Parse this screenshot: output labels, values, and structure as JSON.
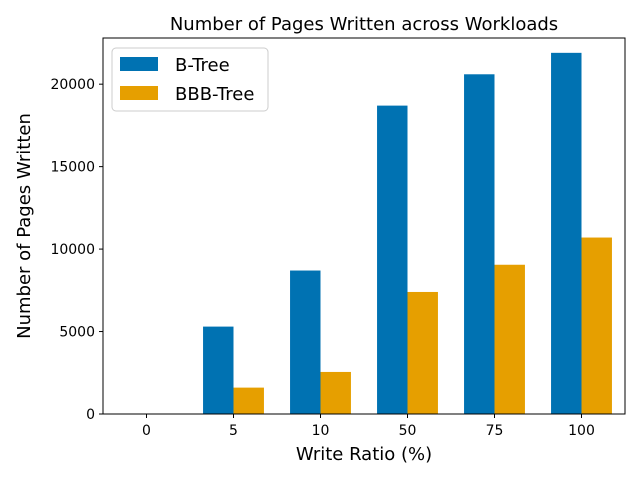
{
  "chart_data": {
    "type": "bar",
    "title": "Number of Pages Written across Workloads",
    "xlabel": "Write Ratio (%)",
    "ylabel": "Number of Pages Written",
    "categories": [
      "0",
      "5",
      "10",
      "50",
      "75",
      "100"
    ],
    "series": [
      {
        "name": "B-Tree",
        "color": "#0072b2",
        "values": [
          0,
          5300,
          8700,
          18700,
          20600,
          21900
        ]
      },
      {
        "name": "BBB-Tree",
        "color": "#e69f00",
        "values": [
          0,
          1600,
          2550,
          7400,
          9050,
          10700
        ]
      }
    ],
    "ylim": [
      0,
      22800
    ],
    "yticks": [
      0,
      5000,
      10000,
      15000,
      20000
    ],
    "grid": false,
    "legend_position": "top-left"
  }
}
